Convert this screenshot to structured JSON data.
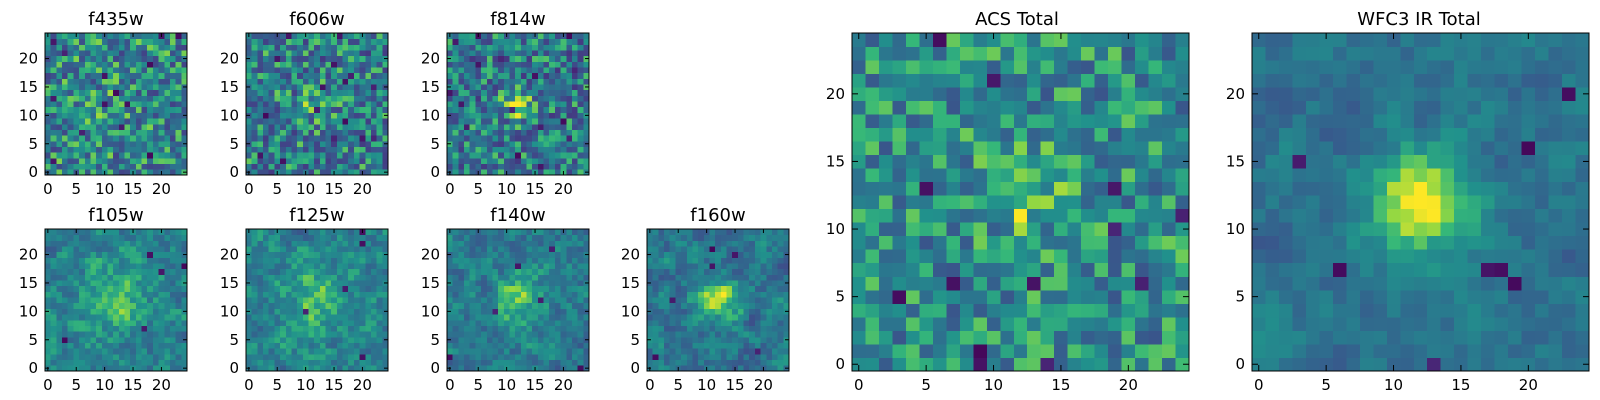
{
  "chart_data": [
    {
      "type": "heatmap",
      "title": "f435w",
      "grid_size": 25,
      "colormap": "viridis",
      "x_ticks": [
        "0",
        "5",
        "10",
        "15",
        "20"
      ],
      "y_ticks": [
        "0",
        "5",
        "10",
        "15",
        "20"
      ],
      "profile": {
        "noise": 0.62,
        "smooth": 0.0,
        "peak_amp": 0.1,
        "peak_x": 12,
        "peak_y": 12,
        "peak_sigma": 2.5,
        "dark_count": 14,
        "bias": 0.55,
        "seed": 101
      }
    },
    {
      "type": "heatmap",
      "title": "f606w",
      "grid_size": 25,
      "colormap": "viridis",
      "x_ticks": [
        "0",
        "5",
        "10",
        "15",
        "20"
      ],
      "y_ticks": [
        "0",
        "5",
        "10",
        "15",
        "20"
      ],
      "profile": {
        "noise": 0.62,
        "smooth": 0.0,
        "peak_amp": 0.18,
        "peak_x": 12,
        "peak_y": 12,
        "peak_sigma": 2.2,
        "dark_count": 16,
        "bias": 0.52,
        "seed": 202
      }
    },
    {
      "type": "heatmap",
      "title": "f814w",
      "grid_size": 25,
      "colormap": "viridis",
      "x_ticks": [
        "0",
        "5",
        "10",
        "15",
        "20"
      ],
      "y_ticks": [
        "0",
        "5",
        "10",
        "15",
        "20"
      ],
      "profile": {
        "noise": 0.6,
        "smooth": 0.0,
        "peak_amp": 0.35,
        "peak_x": 12,
        "peak_y": 12,
        "peak_sigma": 1.8,
        "dark_count": 16,
        "bias": 0.5,
        "seed": 303
      }
    },
    {
      "type": "heatmap",
      "title": "f105w",
      "grid_size": 25,
      "colormap": "viridis",
      "x_ticks": [
        "0",
        "5",
        "10",
        "15",
        "20"
      ],
      "y_ticks": [
        "0",
        "5",
        "10",
        "15",
        "20"
      ],
      "profile": {
        "noise": 0.55,
        "smooth": 0.55,
        "peak_amp": 0.25,
        "peak_x": 12,
        "peak_y": 12,
        "peak_sigma": 3.5,
        "dark_count": 5,
        "bias": 0.55,
        "seed": 404
      }
    },
    {
      "type": "heatmap",
      "title": "f125w",
      "grid_size": 25,
      "colormap": "viridis",
      "x_ticks": [
        "0",
        "5",
        "10",
        "15",
        "20"
      ],
      "y_ticks": [
        "0",
        "5",
        "10",
        "15",
        "20"
      ],
      "profile": {
        "noise": 0.55,
        "smooth": 0.55,
        "peak_amp": 0.25,
        "peak_x": 12,
        "peak_y": 12,
        "peak_sigma": 3.5,
        "dark_count": 5,
        "bias": 0.55,
        "seed": 505
      }
    },
    {
      "type": "heatmap",
      "title": "f140w",
      "grid_size": 25,
      "colormap": "viridis",
      "x_ticks": [
        "0",
        "5",
        "10",
        "15",
        "20"
      ],
      "y_ticks": [
        "0",
        "5",
        "10",
        "15",
        "20"
      ],
      "profile": {
        "noise": 0.55,
        "smooth": 0.55,
        "peak_amp": 0.3,
        "peak_x": 12,
        "peak_y": 12,
        "peak_sigma": 3.0,
        "dark_count": 6,
        "bias": 0.52,
        "seed": 606
      }
    },
    {
      "type": "heatmap",
      "title": "f160w",
      "grid_size": 25,
      "colormap": "viridis",
      "x_ticks": [
        "0",
        "5",
        "10",
        "15",
        "20"
      ],
      "y_ticks": [
        "0",
        "5",
        "10",
        "15",
        "20"
      ],
      "profile": {
        "noise": 0.55,
        "smooth": 0.55,
        "peak_amp": 0.4,
        "peak_x": 12,
        "peak_y": 12,
        "peak_sigma": 2.5,
        "dark_count": 6,
        "bias": 0.5,
        "seed": 707
      }
    },
    {
      "type": "heatmap",
      "title": "ACS Total",
      "grid_size": 25,
      "colormap": "viridis",
      "x_ticks": [
        "0",
        "5",
        "10",
        "15",
        "20"
      ],
      "y_ticks": [
        "0",
        "5",
        "10",
        "15",
        "20"
      ],
      "profile": {
        "noise": 0.5,
        "smooth": 0.0,
        "peak_amp": 0.35,
        "peak_x": 12,
        "peak_y": 13,
        "peak_sigma": 1.8,
        "dark_count": 14,
        "bias": 0.58,
        "seed": 808
      }
    },
    {
      "type": "heatmap",
      "title": "WFC3 IR Total",
      "grid_size": 25,
      "colormap": "viridis",
      "x_ticks": [
        "0",
        "5",
        "10",
        "15",
        "20"
      ],
      "y_ticks": [
        "0",
        "5",
        "10",
        "15",
        "20"
      ],
      "profile": {
        "noise": 0.4,
        "smooth": 0.6,
        "peak_amp": 0.55,
        "peak_x": 12,
        "peak_y": 12,
        "peak_sigma": 2.5,
        "dark_count": 8,
        "bias": 0.48,
        "seed": 909
      }
    }
  ]
}
